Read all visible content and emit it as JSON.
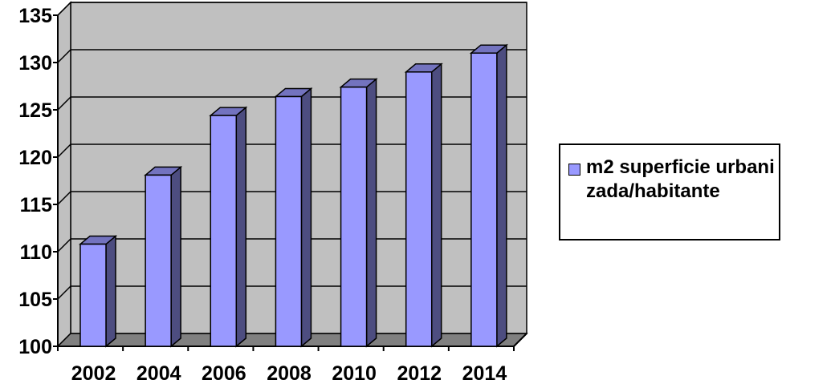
{
  "chart_data": {
    "type": "bar",
    "categories": [
      "2002",
      "2004",
      "2006",
      "2008",
      "2010",
      "2012",
      "2014"
    ],
    "series": [
      {
        "name": "m2 superficie urbanizada/habitante",
        "values": [
          110.8,
          118.1,
          124.4,
          126.4,
          127.4,
          129.0,
          131.0
        ]
      }
    ],
    "ylim": [
      100,
      135
    ],
    "yticks": [
      100,
      105,
      110,
      115,
      120,
      125,
      130,
      135
    ],
    "title": "",
    "xlabel": "",
    "ylabel": "",
    "grid": true,
    "legend_position": "right",
    "colors": {
      "bar_front": "#9999ff",
      "bar_side": "#4d4d80",
      "bar_top": "#7373bf",
      "plot_wall": "#c0c0c0",
      "plot_floor": "#808080",
      "outline": "#000000"
    }
  }
}
